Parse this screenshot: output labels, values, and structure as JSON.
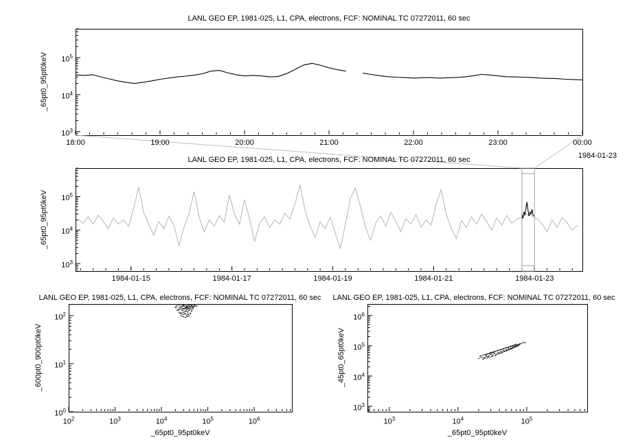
{
  "app": {
    "background": "#ffffff",
    "text_color": "#000000"
  },
  "annotations": {
    "detail_end_date": "1984-01-23"
  },
  "chart_data": [
    {
      "id": "detail_timeseries",
      "type": "line",
      "title": "LANL GEO EP, 1981-025, L1, CPA, electrons, FCF: NOMINAL TC 07272011, 60 sec",
      "ylabel": "_65pt0_95pt0keV",
      "xlabel": "",
      "yscale": "log",
      "xscale": "linear",
      "ylim": [
        800,
        600000
      ],
      "ytick_exponents": [
        3,
        4,
        5
      ],
      "xlim": [
        18,
        24
      ],
      "xticks": [
        18,
        19,
        20,
        21,
        22,
        23,
        24
      ],
      "xtick_labels": [
        "18:00",
        "19:00",
        "20:00",
        "21:00",
        "22:00",
        "23:00",
        "00:00"
      ],
      "x_minor_step": 0.1666667,
      "end_date_label": "1984-01-23",
      "grid": false,
      "legend": "none",
      "series": [
        {
          "name": "electron-flux-65-95keV-detail",
          "color": "#000000",
          "width": 1.1,
          "x_start": 18.0,
          "x_step": 0.1,
          "y": [
            34000,
            33000,
            34500,
            30000,
            26500,
            23500,
            21500,
            20000,
            21500,
            23500,
            26000,
            28000,
            30000,
            31500,
            33500,
            36500,
            43000,
            45000,
            39000,
            34500,
            32000,
            33000,
            32000,
            30000,
            31000,
            37000,
            48000,
            63000,
            70000,
            62000,
            53000,
            47000,
            43000,
            null,
            38000,
            35000,
            32500,
            30500,
            29500,
            29000,
            28000,
            28500,
            29000,
            28000,
            28500,
            29000,
            30000,
            32000,
            35000,
            34000,
            32000,
            30500,
            30000,
            29500,
            29000,
            28000,
            27500,
            27000,
            26000,
            25500,
            25000
          ]
        }
      ]
    },
    {
      "id": "context_timeseries",
      "type": "line",
      "title": "LANL GEO EP, 1981-025, L1, CPA, electrons, FCF: NOMINAL TC 07272011, 60 sec",
      "ylabel": "_65pt0_95pt0keV",
      "xlabel": "",
      "yscale": "log",
      "xscale": "linear",
      "ylim": [
        600,
        700000
      ],
      "ytick_exponents": [
        3,
        4,
        5
      ],
      "xlim": [
        13.9,
        23.95
      ],
      "xticks": [
        15,
        17,
        19,
        21,
        23
      ],
      "xtick_labels": [
        "1984-01-15",
        "1984-01-17",
        "1984-01-19",
        "1984-01-21",
        "1984-01-23"
      ],
      "x_minor_step": 0.25,
      "grid": false,
      "legend": "none",
      "selection": {
        "x0": 22.75,
        "x1": 23.0,
        "color": "#9e9e9e"
      },
      "connector_color": "#bdbdbd",
      "series": [
        {
          "name": "electron-flux-65-95keV-context",
          "color": "#b3b3b3",
          "width": 1,
          "x_start": 13.95,
          "x_step": 0.1,
          "y": [
            21000,
            16000,
            25000,
            15000,
            28000,
            18000,
            11000,
            23000,
            15000,
            20000,
            13000,
            42000,
            190000,
            34000,
            15000,
            7000,
            18000,
            11000,
            26000,
            14000,
            3500,
            12000,
            31000,
            140000,
            24000,
            9000,
            20000,
            13000,
            27000,
            17000,
            110000,
            30000,
            15000,
            80000,
            22000,
            4500,
            16000,
            25000,
            12000,
            20000,
            15000,
            32000,
            21000,
            60000,
            220000,
            40000,
            13000,
            6000,
            18000,
            11000,
            24000,
            8000,
            2800,
            15000,
            90000,
            180000,
            50000,
            12000,
            5000,
            16000,
            26000,
            13000,
            34000,
            18000,
            9000,
            22000,
            15000,
            29000,
            12000,
            20000,
            14000,
            60000,
            160000,
            30000,
            11000,
            5500,
            19000,
            12000,
            25000,
            15000,
            30000,
            18000,
            10000,
            23000,
            14000,
            27000,
            16000,
            21000,
            24000,
            30000,
            26000,
            22000,
            15000,
            9000,
            20000,
            12000,
            24000,
            16000,
            10000,
            14000
          ]
        },
        {
          "name": "electron-flux-65-95keV-highlighted-interval",
          "color": "#000000",
          "width": 1.1,
          "x": [
            22.75,
            22.77,
            22.79,
            22.81,
            22.83,
            22.85,
            22.87,
            22.89,
            22.91,
            22.93,
            22.95,
            22.97,
            23.0
          ],
          "y": [
            30000,
            22000,
            35000,
            28000,
            45000,
            68000,
            40000,
            26000,
            34000,
            30000,
            42000,
            28000,
            26000
          ]
        }
      ]
    },
    {
      "id": "scatter_600_900",
      "type": "scatter",
      "title": "LANL GEO EP, 1981-025, L1, CPA, electrons, FCF: NOMINAL TC 07272011, 60 sec",
      "xlabel": "_65pt0_95pt0keV",
      "ylabel": "_600pt0_900pt0keV",
      "xscale": "log",
      "yscale": "log",
      "xlim": [
        100,
        6500000
      ],
      "ylim": [
        1,
        175
      ],
      "xtick_exponents": [
        2,
        3,
        4,
        5,
        6
      ],
      "ytick_exponents": [
        0,
        1,
        2
      ],
      "point_color": "#000000",
      "grid": false,
      "legend": "none",
      "points": [
        [
          21000,
          160
        ],
        [
          24000,
          170
        ],
        [
          27000,
          150
        ],
        [
          30000,
          165
        ],
        [
          33000,
          172
        ],
        [
          36000,
          158
        ],
        [
          39000,
          168
        ],
        [
          42000,
          150
        ],
        [
          45000,
          162
        ],
        [
          30000,
          140
        ],
        [
          33000,
          148
        ],
        [
          36000,
          135
        ],
        [
          28000,
          128
        ],
        [
          31000,
          120
        ],
        [
          34000,
          126
        ],
        [
          37000,
          118
        ],
        [
          40000,
          130
        ],
        [
          26000,
          112
        ],
        [
          29000,
          105
        ],
        [
          32000,
          110
        ],
        [
          35000,
          102
        ],
        [
          38000,
          108
        ],
        [
          24000,
          118
        ],
        [
          27000,
          98
        ],
        [
          30000,
          95
        ],
        [
          33000,
          92
        ],
        [
          36000,
          96
        ],
        [
          39000,
          100
        ],
        [
          42000,
          112
        ],
        [
          45000,
          125
        ],
        [
          48000,
          140
        ],
        [
          50000,
          155
        ],
        [
          23000,
          135
        ],
        [
          25000,
          145
        ],
        [
          44000,
          135
        ],
        [
          47000,
          150
        ],
        [
          52000,
          165
        ],
        [
          55000,
          172
        ],
        [
          20000,
          150
        ],
        [
          22000,
          128
        ],
        [
          58000,
          160
        ],
        [
          35000,
          155
        ],
        [
          38000,
          145
        ],
        [
          41000,
          140
        ],
        [
          31000,
          158
        ],
        [
          28000,
          165
        ]
      ]
    },
    {
      "id": "scatter_45_65",
      "type": "scatter",
      "title": "LANL GEO EP, 1981-025, L1, CPA, electrons, FCF: NOMINAL TC 07272011, 60 sec",
      "xlabel": "_65pt0_95pt0keV",
      "ylabel": "_45pt0_65pt0keV",
      "xscale": "log",
      "yscale": "log",
      "xlim": [
        480,
        760000
      ],
      "ylim": [
        660,
        2400000
      ],
      "xtick_exponents": [
        3,
        4,
        5
      ],
      "ytick_exponents": [
        3,
        4,
        5,
        6
      ],
      "point_color": "#000000",
      "grid": false,
      "legend": "none",
      "points": [
        [
          20000,
          38000
        ],
        [
          22000,
          42000
        ],
        [
          24000,
          40000
        ],
        [
          26000,
          46000
        ],
        [
          28000,
          44000
        ],
        [
          30000,
          52000
        ],
        [
          32000,
          48000
        ],
        [
          34000,
          56000
        ],
        [
          36000,
          52000
        ],
        [
          38000,
          60000
        ],
        [
          40000,
          58000
        ],
        [
          42000,
          64000
        ],
        [
          44000,
          62000
        ],
        [
          46000,
          70000
        ],
        [
          48000,
          66000
        ],
        [
          50000,
          74000
        ],
        [
          52000,
          72000
        ],
        [
          54000,
          80000
        ],
        [
          56000,
          76000
        ],
        [
          58000,
          84000
        ],
        [
          60000,
          82000
        ],
        [
          62000,
          90000
        ],
        [
          64000,
          88000
        ],
        [
          66000,
          96000
        ],
        [
          68000,
          94000
        ],
        [
          70000,
          100000
        ],
        [
          72000,
          98000
        ],
        [
          74000,
          108000
        ],
        [
          76000,
          104000
        ],
        [
          78000,
          112000
        ],
        [
          80000,
          118000
        ],
        [
          26000,
          52000
        ],
        [
          30000,
          60000
        ],
        [
          34000,
          64000
        ],
        [
          38000,
          70000
        ],
        [
          42000,
          74000
        ],
        [
          46000,
          80000
        ],
        [
          50000,
          86000
        ],
        [
          54000,
          90000
        ],
        [
          58000,
          96000
        ],
        [
          62000,
          100000
        ],
        [
          66000,
          106000
        ],
        [
          70000,
          112000
        ],
        [
          21000,
          46000
        ],
        [
          25000,
          50000
        ],
        [
          29000,
          56000
        ],
        [
          33000,
          60000
        ],
        [
          23000,
          36000
        ],
        [
          27000,
          40000
        ],
        [
          31000,
          44000
        ],
        [
          35000,
          48000
        ],
        [
          39000,
          54000
        ],
        [
          43000,
          58000
        ],
        [
          47000,
          64000
        ],
        [
          51000,
          68000
        ],
        [
          55000,
          74000
        ],
        [
          59000,
          78000
        ],
        [
          63000,
          84000
        ],
        [
          67000,
          90000
        ],
        [
          71000,
          94000
        ],
        [
          75000,
          100000
        ],
        [
          85000,
          120000
        ],
        [
          90000,
          130000
        ],
        [
          95000,
          125000
        ]
      ]
    }
  ]
}
